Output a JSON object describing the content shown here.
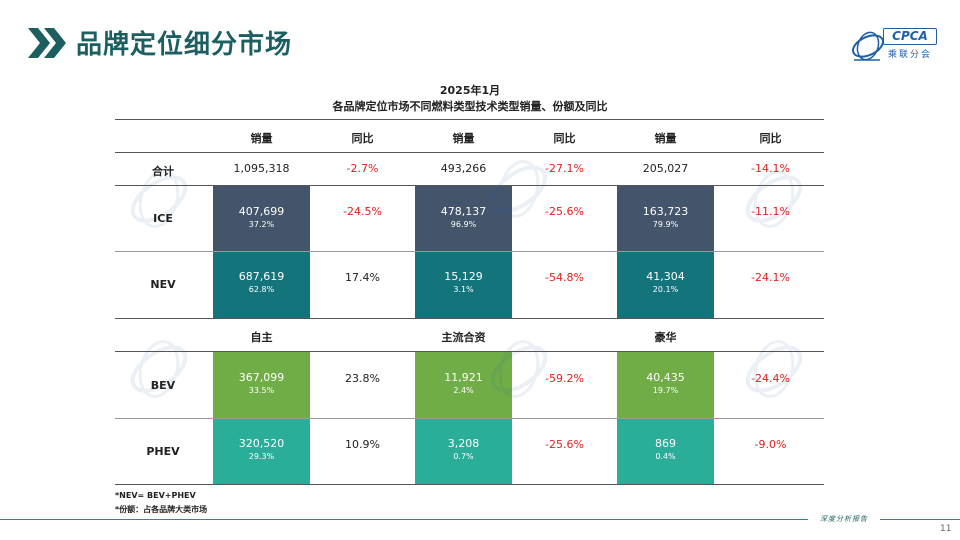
{
  "header": {
    "title": "品牌定位细分市场",
    "logo_text": "CPCA",
    "logo_sub": "乘联分会"
  },
  "table": {
    "title_line1": "2025年1月",
    "title_line2": "各品牌定位市场不同燃料类型技术类型销量、份额及同比",
    "top_headers": [
      "销量",
      "同比",
      "销量",
      "同比",
      "销量",
      "同比"
    ],
    "total": {
      "label": "合计",
      "values": [
        "1,095,318",
        "-2.7%",
        "493,266",
        "-27.1%",
        "205,027",
        "-14.1%"
      ]
    },
    "ice": {
      "label": "ICE",
      "cells": [
        {
          "value": "407,699",
          "share": "37.2%",
          "yoy": "-24.5%"
        },
        {
          "value": "478,137",
          "share": "96.9%",
          "yoy": "-25.6%"
        },
        {
          "value": "163,723",
          "share": "79.9%",
          "yoy": "-11.1%"
        }
      ]
    },
    "nev": {
      "label": "NEV",
      "cells": [
        {
          "value": "687,619",
          "share": "62.8%",
          "yoy": "17.4%"
        },
        {
          "value": "15,129",
          "share": "3.1%",
          "yoy": "-54.8%"
        },
        {
          "value": "41,304",
          "share": "20.1%",
          "yoy": "-24.1%"
        }
      ]
    },
    "segment_headers": [
      "自主",
      "主流合资",
      "豪华"
    ],
    "bev": {
      "label": "BEV",
      "cells": [
        {
          "value": "367,099",
          "share": "33.5%",
          "yoy": "23.8%"
        },
        {
          "value": "11,921",
          "share": "2.4%",
          "yoy": "-59.2%"
        },
        {
          "value": "40,435",
          "share": "19.7%",
          "yoy": "-24.4%"
        }
      ]
    },
    "phev": {
      "label": "PHEV",
      "cells": [
        {
          "value": "320,520",
          "share": "29.3%",
          "yoy": "10.9%"
        },
        {
          "value": "3,208",
          "share": "0.7%",
          "yoy": "-25.6%"
        },
        {
          "value": "869",
          "share": "0.4%",
          "yoy": "-9.0%"
        }
      ]
    }
  },
  "notes": [
    "*NEV= BEV+PHEV",
    "*份额：占各品牌大类市场"
  ],
  "footer": {
    "tag": "深度分析报告",
    "page_number": "11"
  },
  "colors": {
    "title": "#1d5f61",
    "ice": "#44546a",
    "nev": "#14747c",
    "bev": "#70ad47",
    "phev": "#2aae99",
    "negative": "#e02020"
  },
  "icons": [
    "double-chevron-icon",
    "cpca-logo-icon",
    "watermark-logo-icon"
  ]
}
